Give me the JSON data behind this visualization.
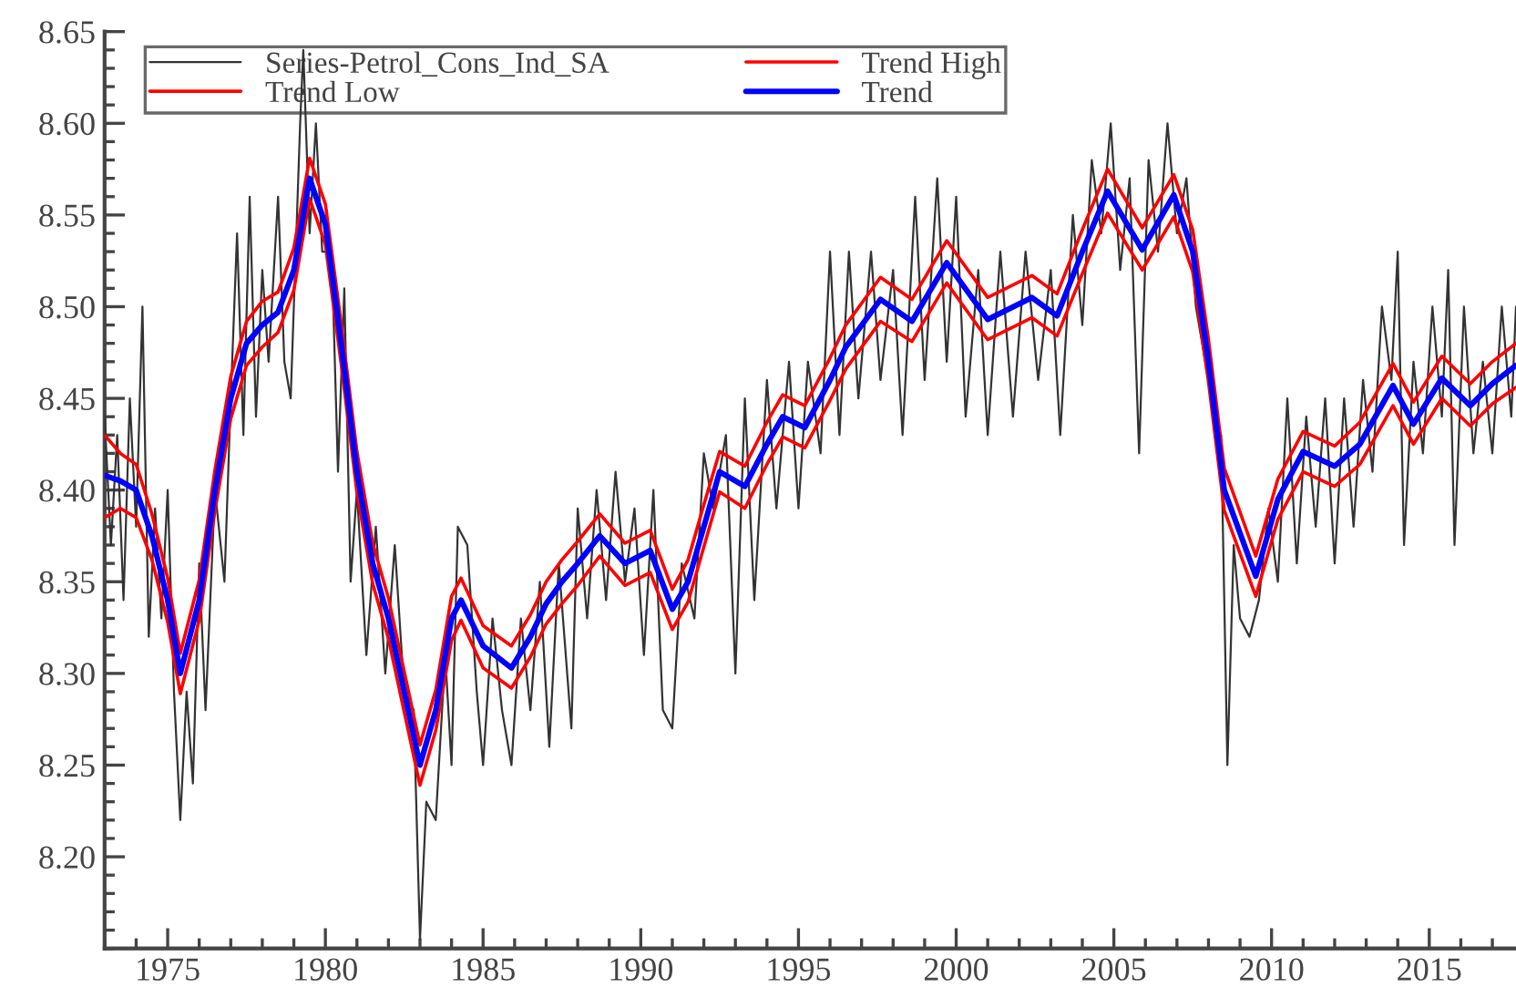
{
  "chart_data": {
    "type": "line",
    "x": [
      1973.0,
      1973.5,
      1974.0,
      1974.5,
      1975.0,
      1975.4,
      1976.0,
      1976.5,
      1977.0,
      1977.5,
      1978.0,
      1978.5,
      1979.0,
      1979.5,
      1980.0,
      1980.5,
      1981.0,
      1981.5,
      1982.0,
      1982.5,
      1983.0,
      1983.5,
      1984.0,
      1984.3,
      1985.0,
      1985.9,
      1986.5,
      1987.0,
      1987.5,
      1988.0,
      1988.7,
      1989.5,
      1990.3,
      1991.0,
      1991.5,
      1992.0,
      1992.5,
      1993.3,
      1994.0,
      1994.5,
      1995.2,
      1996.0,
      1996.5,
      1997.6,
      1998.6,
      1999.7,
      2001.0,
      2002.4,
      2003.2,
      2004.0,
      2004.8,
      2005.9,
      2006.9,
      2007.5,
      2008.0,
      2008.5,
      2009.5,
      2010.2,
      2011.0,
      2012.0,
      2012.8,
      2013.85,
      2014.5,
      2015.4,
      2016.3,
      2017.0,
      2017.75
    ],
    "series": [
      {
        "name": "Series-Petrol_Cons_Ind_SA",
        "color": "#333333",
        "x": [
          1973.0,
          1973.2,
          1973.4,
          1973.6,
          1973.8,
          1974.0,
          1974.2,
          1974.4,
          1974.6,
          1974.8,
          1975.0,
          1975.2,
          1975.4,
          1975.6,
          1975.8,
          1976.0,
          1976.2,
          1976.5,
          1976.8,
          1977.0,
          1977.2,
          1977.4,
          1977.6,
          1977.8,
          1978.0,
          1978.2,
          1978.5,
          1978.7,
          1978.9,
          1979.2,
          1979.3,
          1979.5,
          1979.7,
          1979.9,
          1980.2,
          1980.4,
          1980.6,
          1980.8,
          1981.0,
          1981.3,
          1981.6,
          1981.9,
          1982.2,
          1982.5,
          1982.8,
          1983.0,
          1983.2,
          1983.5,
          1983.8,
          1984.0,
          1984.2,
          1984.5,
          1984.8,
          1985.0,
          1985.3,
          1985.6,
          1985.9,
          1986.2,
          1986.5,
          1986.8,
          1987.1,
          1987.4,
          1987.8,
          1988.0,
          1988.3,
          1988.6,
          1988.9,
          1989.2,
          1989.5,
          1989.8,
          1990.1,
          1990.4,
          1990.7,
          1991.0,
          1991.3,
          1991.7,
          1992.0,
          1992.3,
          1992.7,
          1993.0,
          1993.3,
          1993.6,
          1994.0,
          1994.3,
          1994.7,
          1995.0,
          1995.3,
          1995.7,
          1996.0,
          1996.3,
          1996.6,
          1996.9,
          1997.3,
          1997.6,
          1998.0,
          1998.3,
          1998.7,
          1999.0,
          1999.4,
          1999.7,
          2000.0,
          2000.3,
          2000.7,
          2001.0,
          2001.4,
          2001.8,
          2002.2,
          2002.6,
          2003.0,
          2003.3,
          2003.7,
          2004.0,
          2004.3,
          2004.6,
          2004.9,
          2005.2,
          2005.5,
          2005.8,
          2006.1,
          2006.4,
          2006.7,
          2007.0,
          2007.3,
          2007.6,
          2007.9,
          2008.2,
          2008.4,
          2008.6,
          2008.8,
          2009.0,
          2009.3,
          2009.6,
          2009.9,
          2010.2,
          2010.5,
          2010.8,
          2011.1,
          2011.4,
          2011.7,
          2012.0,
          2012.3,
          2012.6,
          2012.9,
          2013.2,
          2013.5,
          2013.8,
          2014.0,
          2014.2,
          2014.5,
          2014.8,
          2015.1,
          2015.4,
          2015.6,
          2015.8,
          2016.1,
          2016.4,
          2016.7,
          2017.0,
          2017.3,
          2017.6,
          2017.75
        ],
        "values": [
          8.44,
          8.37,
          8.43,
          8.34,
          8.45,
          8.38,
          8.5,
          8.32,
          8.39,
          8.33,
          8.4,
          8.29,
          8.22,
          8.29,
          8.24,
          8.36,
          8.28,
          8.4,
          8.35,
          8.45,
          8.54,
          8.43,
          8.56,
          8.44,
          8.52,
          8.47,
          8.56,
          8.47,
          8.45,
          8.6,
          8.64,
          8.54,
          8.6,
          8.53,
          8.53,
          8.41,
          8.51,
          8.35,
          8.4,
          8.31,
          8.38,
          8.3,
          8.37,
          8.29,
          8.28,
          8.155,
          8.23,
          8.22,
          8.31,
          8.25,
          8.38,
          8.37,
          8.29,
          8.25,
          8.33,
          8.28,
          8.25,
          8.33,
          8.28,
          8.35,
          8.26,
          8.36,
          8.27,
          8.39,
          8.33,
          8.4,
          8.34,
          8.41,
          8.35,
          8.39,
          8.31,
          8.4,
          8.28,
          8.27,
          8.36,
          8.33,
          8.42,
          8.39,
          8.43,
          8.3,
          8.45,
          8.34,
          8.46,
          8.39,
          8.47,
          8.39,
          8.47,
          8.42,
          8.53,
          8.43,
          8.53,
          8.45,
          8.53,
          8.46,
          8.52,
          8.43,
          8.56,
          8.46,
          8.57,
          8.47,
          8.56,
          8.44,
          8.52,
          8.43,
          8.53,
          8.44,
          8.53,
          8.46,
          8.52,
          8.43,
          8.55,
          8.49,
          8.58,
          8.54,
          8.6,
          8.52,
          8.57,
          8.42,
          8.58,
          8.53,
          8.6,
          8.54,
          8.57,
          8.5,
          8.47,
          8.44,
          8.43,
          8.25,
          8.37,
          8.33,
          8.32,
          8.34,
          8.39,
          8.35,
          8.45,
          8.36,
          8.44,
          8.38,
          8.45,
          8.36,
          8.45,
          8.38,
          8.46,
          8.41,
          8.5,
          8.46,
          8.53,
          8.37,
          8.47,
          8.42,
          8.5,
          8.44,
          8.52,
          8.37,
          8.5,
          8.42,
          8.47,
          8.42,
          8.5,
          8.44,
          8.5
        ]
      },
      {
        "name": "Trend Low",
        "color": "#ff0000",
        "values": [
          8.385,
          8.39,
          8.385,
          8.362,
          8.328,
          8.289,
          8.329,
          8.389,
          8.439,
          8.468,
          8.478,
          8.486,
          8.509,
          8.559,
          8.534,
          8.469,
          8.399,
          8.349,
          8.319,
          8.279,
          8.239,
          8.269,
          8.318,
          8.329,
          8.303,
          8.292,
          8.309,
          8.327,
          8.338,
          8.348,
          8.364,
          8.348,
          8.355,
          8.324,
          8.339,
          8.369,
          8.399,
          8.39,
          8.414,
          8.429,
          8.423,
          8.449,
          8.466,
          8.492,
          8.481,
          8.513,
          8.482,
          8.494,
          8.484,
          8.518,
          8.551,
          8.52,
          8.549,
          8.519,
          8.459,
          8.389,
          8.342,
          8.384,
          8.41,
          8.402,
          8.414,
          8.446,
          8.425,
          8.45,
          8.435,
          8.447,
          8.456
        ]
      },
      {
        "name": "Trend High",
        "color": "#ff0000",
        "values": [
          8.43,
          8.42,
          8.414,
          8.387,
          8.352,
          8.311,
          8.351,
          8.411,
          8.462,
          8.492,
          8.503,
          8.508,
          8.532,
          8.581,
          8.556,
          8.491,
          8.421,
          8.371,
          8.341,
          8.301,
          8.261,
          8.291,
          8.342,
          8.352,
          8.326,
          8.315,
          8.332,
          8.35,
          8.362,
          8.372,
          8.387,
          8.371,
          8.378,
          8.346,
          8.362,
          8.392,
          8.421,
          8.413,
          8.437,
          8.452,
          8.446,
          8.472,
          8.49,
          8.516,
          8.504,
          8.536,
          8.505,
          8.517,
          8.507,
          8.542,
          8.575,
          8.543,
          8.572,
          8.542,
          8.482,
          8.412,
          8.364,
          8.406,
          8.432,
          8.424,
          8.437,
          8.469,
          8.448,
          8.473,
          8.458,
          8.47,
          8.48
        ]
      },
      {
        "name": "Trend",
        "color": "#0000ff",
        "values": [
          8.408,
          8.405,
          8.4,
          8.375,
          8.34,
          8.3,
          8.34,
          8.4,
          8.45,
          8.48,
          8.49,
          8.497,
          8.52,
          8.57,
          8.545,
          8.48,
          8.41,
          8.36,
          8.33,
          8.29,
          8.25,
          8.28,
          8.33,
          8.34,
          8.315,
          8.303,
          8.32,
          8.338,
          8.35,
          8.36,
          8.375,
          8.36,
          8.367,
          8.335,
          8.35,
          8.38,
          8.41,
          8.402,
          8.425,
          8.44,
          8.434,
          8.46,
          8.478,
          8.504,
          8.492,
          8.524,
          8.493,
          8.505,
          8.495,
          8.53,
          8.563,
          8.531,
          8.561,
          8.53,
          8.47,
          8.4,
          8.353,
          8.395,
          8.421,
          8.413,
          8.425,
          8.457,
          8.436,
          8.461,
          8.446,
          8.458,
          8.468
        ]
      }
    ],
    "xlim": [
      1973,
      2017.75
    ],
    "xticks": [
      1975,
      1980,
      1985,
      1990,
      1995,
      2000,
      2005,
      2010,
      2015
    ],
    "ylim": [
      8.15,
      8.65
    ],
    "yticks": [
      {
        "value": 8.2,
        "label": "8.20"
      },
      {
        "value": 8.25,
        "label": "8.25"
      },
      {
        "value": 8.3,
        "label": "8.30"
      },
      {
        "value": 8.35,
        "label": "8.35"
      },
      {
        "value": 8.4,
        "label": "8.40"
      },
      {
        "value": 8.45,
        "label": "8.45"
      },
      {
        "value": 8.5,
        "label": "8.50"
      },
      {
        "value": 8.55,
        "label": "8.55"
      },
      {
        "value": 8.6,
        "label": "8.60"
      },
      {
        "value": 8.65,
        "label": "8.65"
      }
    ],
    "legend": "top left"
  }
}
